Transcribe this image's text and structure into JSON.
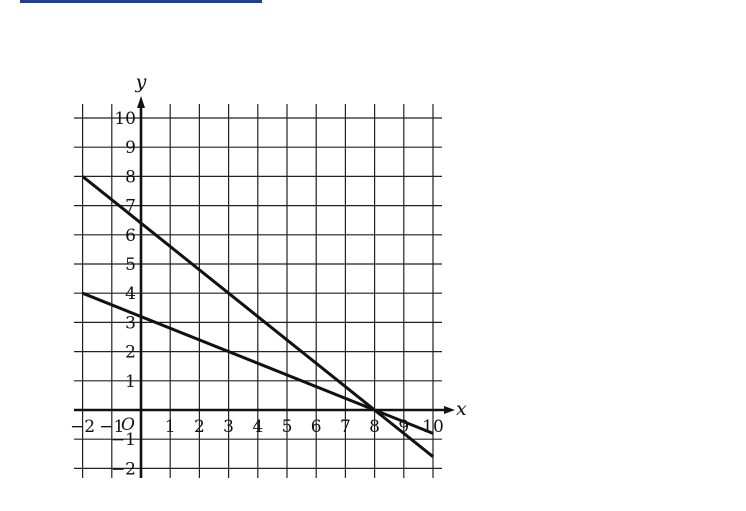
{
  "chart_data": {
    "type": "line",
    "xlabel": "x",
    "ylabel": "y",
    "origin_label": "O",
    "xlim": [
      -2,
      10
    ],
    "ylim": [
      -2,
      10
    ],
    "grid": true,
    "x_ticks": [
      -2,
      -1,
      1,
      2,
      3,
      4,
      5,
      6,
      7,
      8,
      9,
      10
    ],
    "x_tick_labels": [
      "−2",
      "−1",
      "1",
      "2",
      "3",
      "4",
      "5",
      "6",
      "7",
      "8",
      "9",
      "10"
    ],
    "y_ticks": [
      10,
      9,
      8,
      7,
      6,
      5,
      4,
      3,
      2,
      1,
      -1,
      -2
    ],
    "y_tick_labels": [
      "10",
      "9",
      "8",
      "7",
      "6",
      "5",
      "4",
      "3",
      "2",
      "1",
      "−1",
      "−2"
    ],
    "series": [
      {
        "x": [
          -2,
          10
        ],
        "y": [
          8,
          -1.6
        ]
      },
      {
        "x": [
          -2,
          10
        ],
        "y": [
          4,
          -0.8
        ]
      }
    ]
  },
  "colors": {
    "ink": "#111111",
    "grid": "#222222",
    "top_rule": "#1f3f8f"
  }
}
